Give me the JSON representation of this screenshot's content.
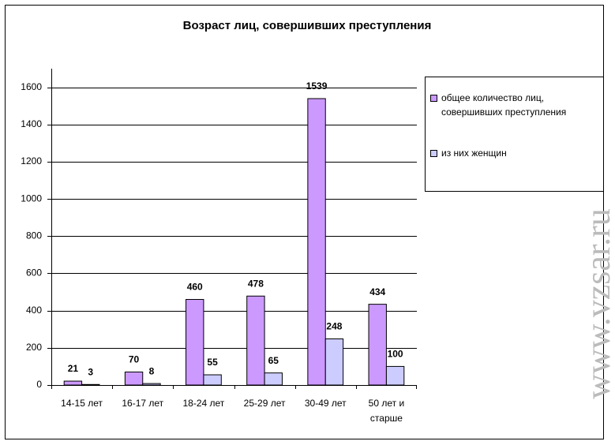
{
  "chart_data": {
    "type": "bar",
    "title": "Возраст лиц, совершивших преступления",
    "categories": [
      "14-15 лет",
      "16-17 лет",
      "18-24 лет",
      "25-29 лет",
      "30-49 лет",
      "50 лет и старше"
    ],
    "series": [
      {
        "name": "общее количество лиц, совершивших преступления",
        "color": "#cc99ff",
        "values": [
          21,
          70,
          460,
          478,
          1539,
          434
        ]
      },
      {
        "name": "из них женщин",
        "color": "#ccccff",
        "values": [
          3,
          8,
          55,
          65,
          248,
          100
        ]
      }
    ],
    "ylim": [
      0,
      1700
    ],
    "yticks": [
      0,
      200,
      400,
      600,
      800,
      1000,
      1200,
      1400,
      1600
    ],
    "grid": true,
    "watermark": "www.vzsar.ru"
  }
}
